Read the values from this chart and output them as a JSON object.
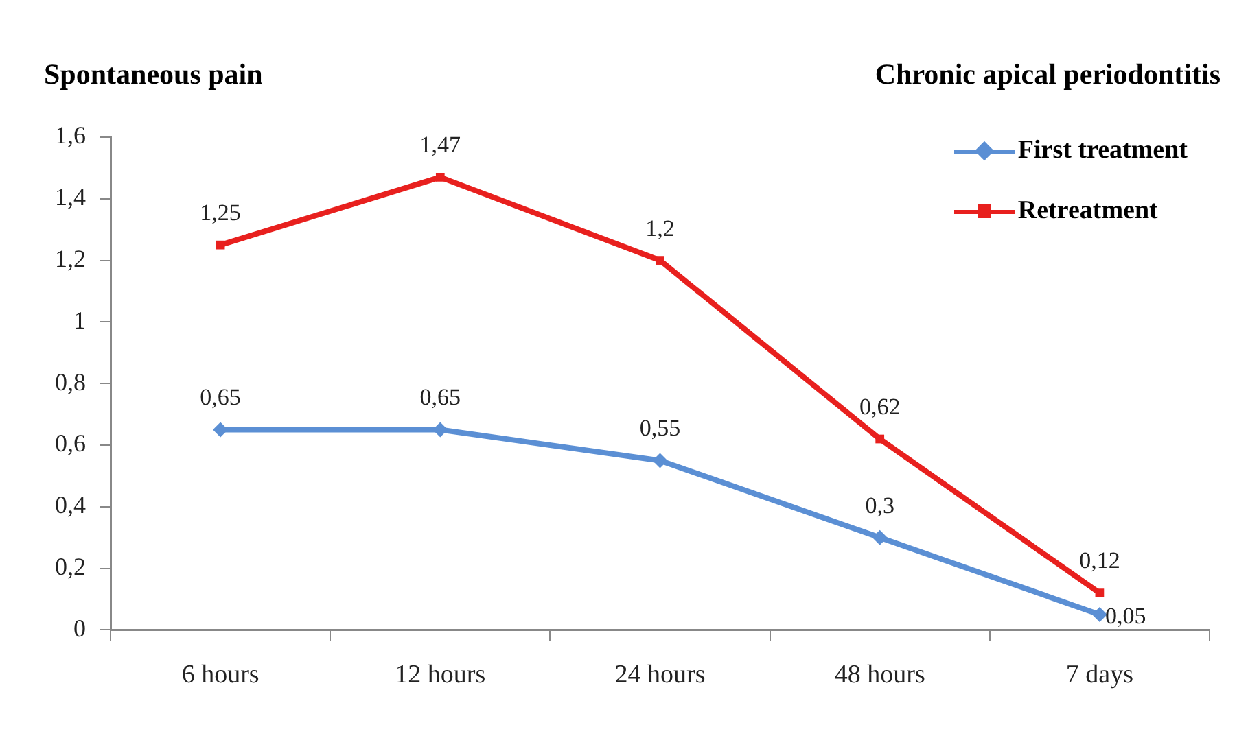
{
  "chart_data": {
    "type": "line",
    "title": "Spontaneous pain",
    "subtitle": "Chronic apical periodontitis",
    "categories": [
      "6 hours",
      "12 hours",
      "24 hours",
      "48 hours",
      "7 days"
    ],
    "series": [
      {
        "name": "First treatment",
        "color": "#5b8fd4",
        "marker": "diamond",
        "values": [
          0.65,
          0.65,
          0.55,
          0.3,
          0.05
        ],
        "value_labels": [
          "0,65",
          "0,65",
          "0,55",
          "0,3",
          "0,05"
        ]
      },
      {
        "name": "Retreatment",
        "color": "#e8201e",
        "marker": "square",
        "values": [
          1.25,
          1.47,
          1.2,
          0.62,
          0.12
        ],
        "value_labels": [
          "1,25",
          "1,47",
          "1,2",
          "0,62",
          "0,12"
        ]
      }
    ],
    "ylim": [
      0,
      1.6
    ],
    "yticks": [
      0,
      {
        "value": 0.2,
        "label": "0,2"
      },
      {
        "value": 0.4,
        "label": "0,4"
      },
      {
        "value": 0.6,
        "label": "0,6"
      },
      {
        "value": 0.8,
        "label": "0,8"
      },
      1,
      {
        "value": 1.2,
        "label": "1,2"
      },
      {
        "value": 1.4,
        "label": "1,4"
      },
      {
        "value": 1.6,
        "label": "1,6"
      }
    ],
    "grid": false,
    "legend": "top right",
    "line_style": "solid"
  }
}
